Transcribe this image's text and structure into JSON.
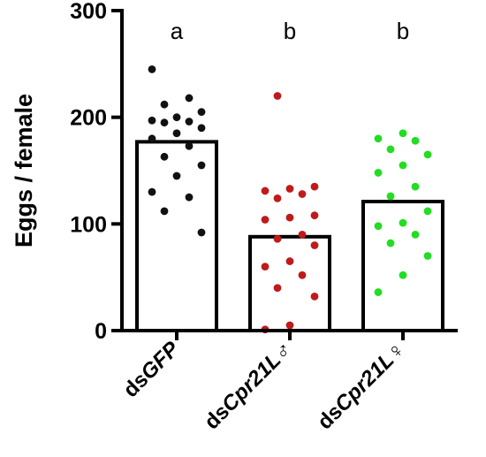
{
  "chart_data": {
    "type": "bar",
    "ylabel": "Eggs / female",
    "xlabel": "",
    "ylim": [
      0,
      300
    ],
    "yticks": [
      0,
      100,
      200,
      300
    ],
    "grid": false,
    "categories": [
      {
        "prefix": "ds",
        "name": "GFP",
        "suffix": ""
      },
      {
        "prefix": "ds",
        "name": "Cpr21L",
        "suffix": "♂"
      },
      {
        "prefix": "ds",
        "name": "Cpr21L",
        "suffix": "♀"
      }
    ],
    "values": [
      177,
      88,
      121
    ],
    "significance": [
      "a",
      "b",
      "b"
    ],
    "point_colors": [
      "#111111",
      "#c01a1a",
      "#22dd22"
    ],
    "points": [
      [
        245,
        218,
        212,
        205,
        200,
        197,
        196,
        195,
        190,
        185,
        180,
        173,
        163,
        155,
        145,
        130,
        125,
        112,
        92
      ],
      [
        220,
        135,
        133,
        131,
        128,
        124,
        108,
        106,
        104,
        90,
        86,
        80,
        65,
        60,
        52,
        40,
        32,
        5,
        1
      ],
      [
        185,
        180,
        178,
        170,
        165,
        155,
        148,
        135,
        126,
        112,
        101,
        98,
        90,
        82,
        70,
        52,
        36
      ]
    ]
  }
}
